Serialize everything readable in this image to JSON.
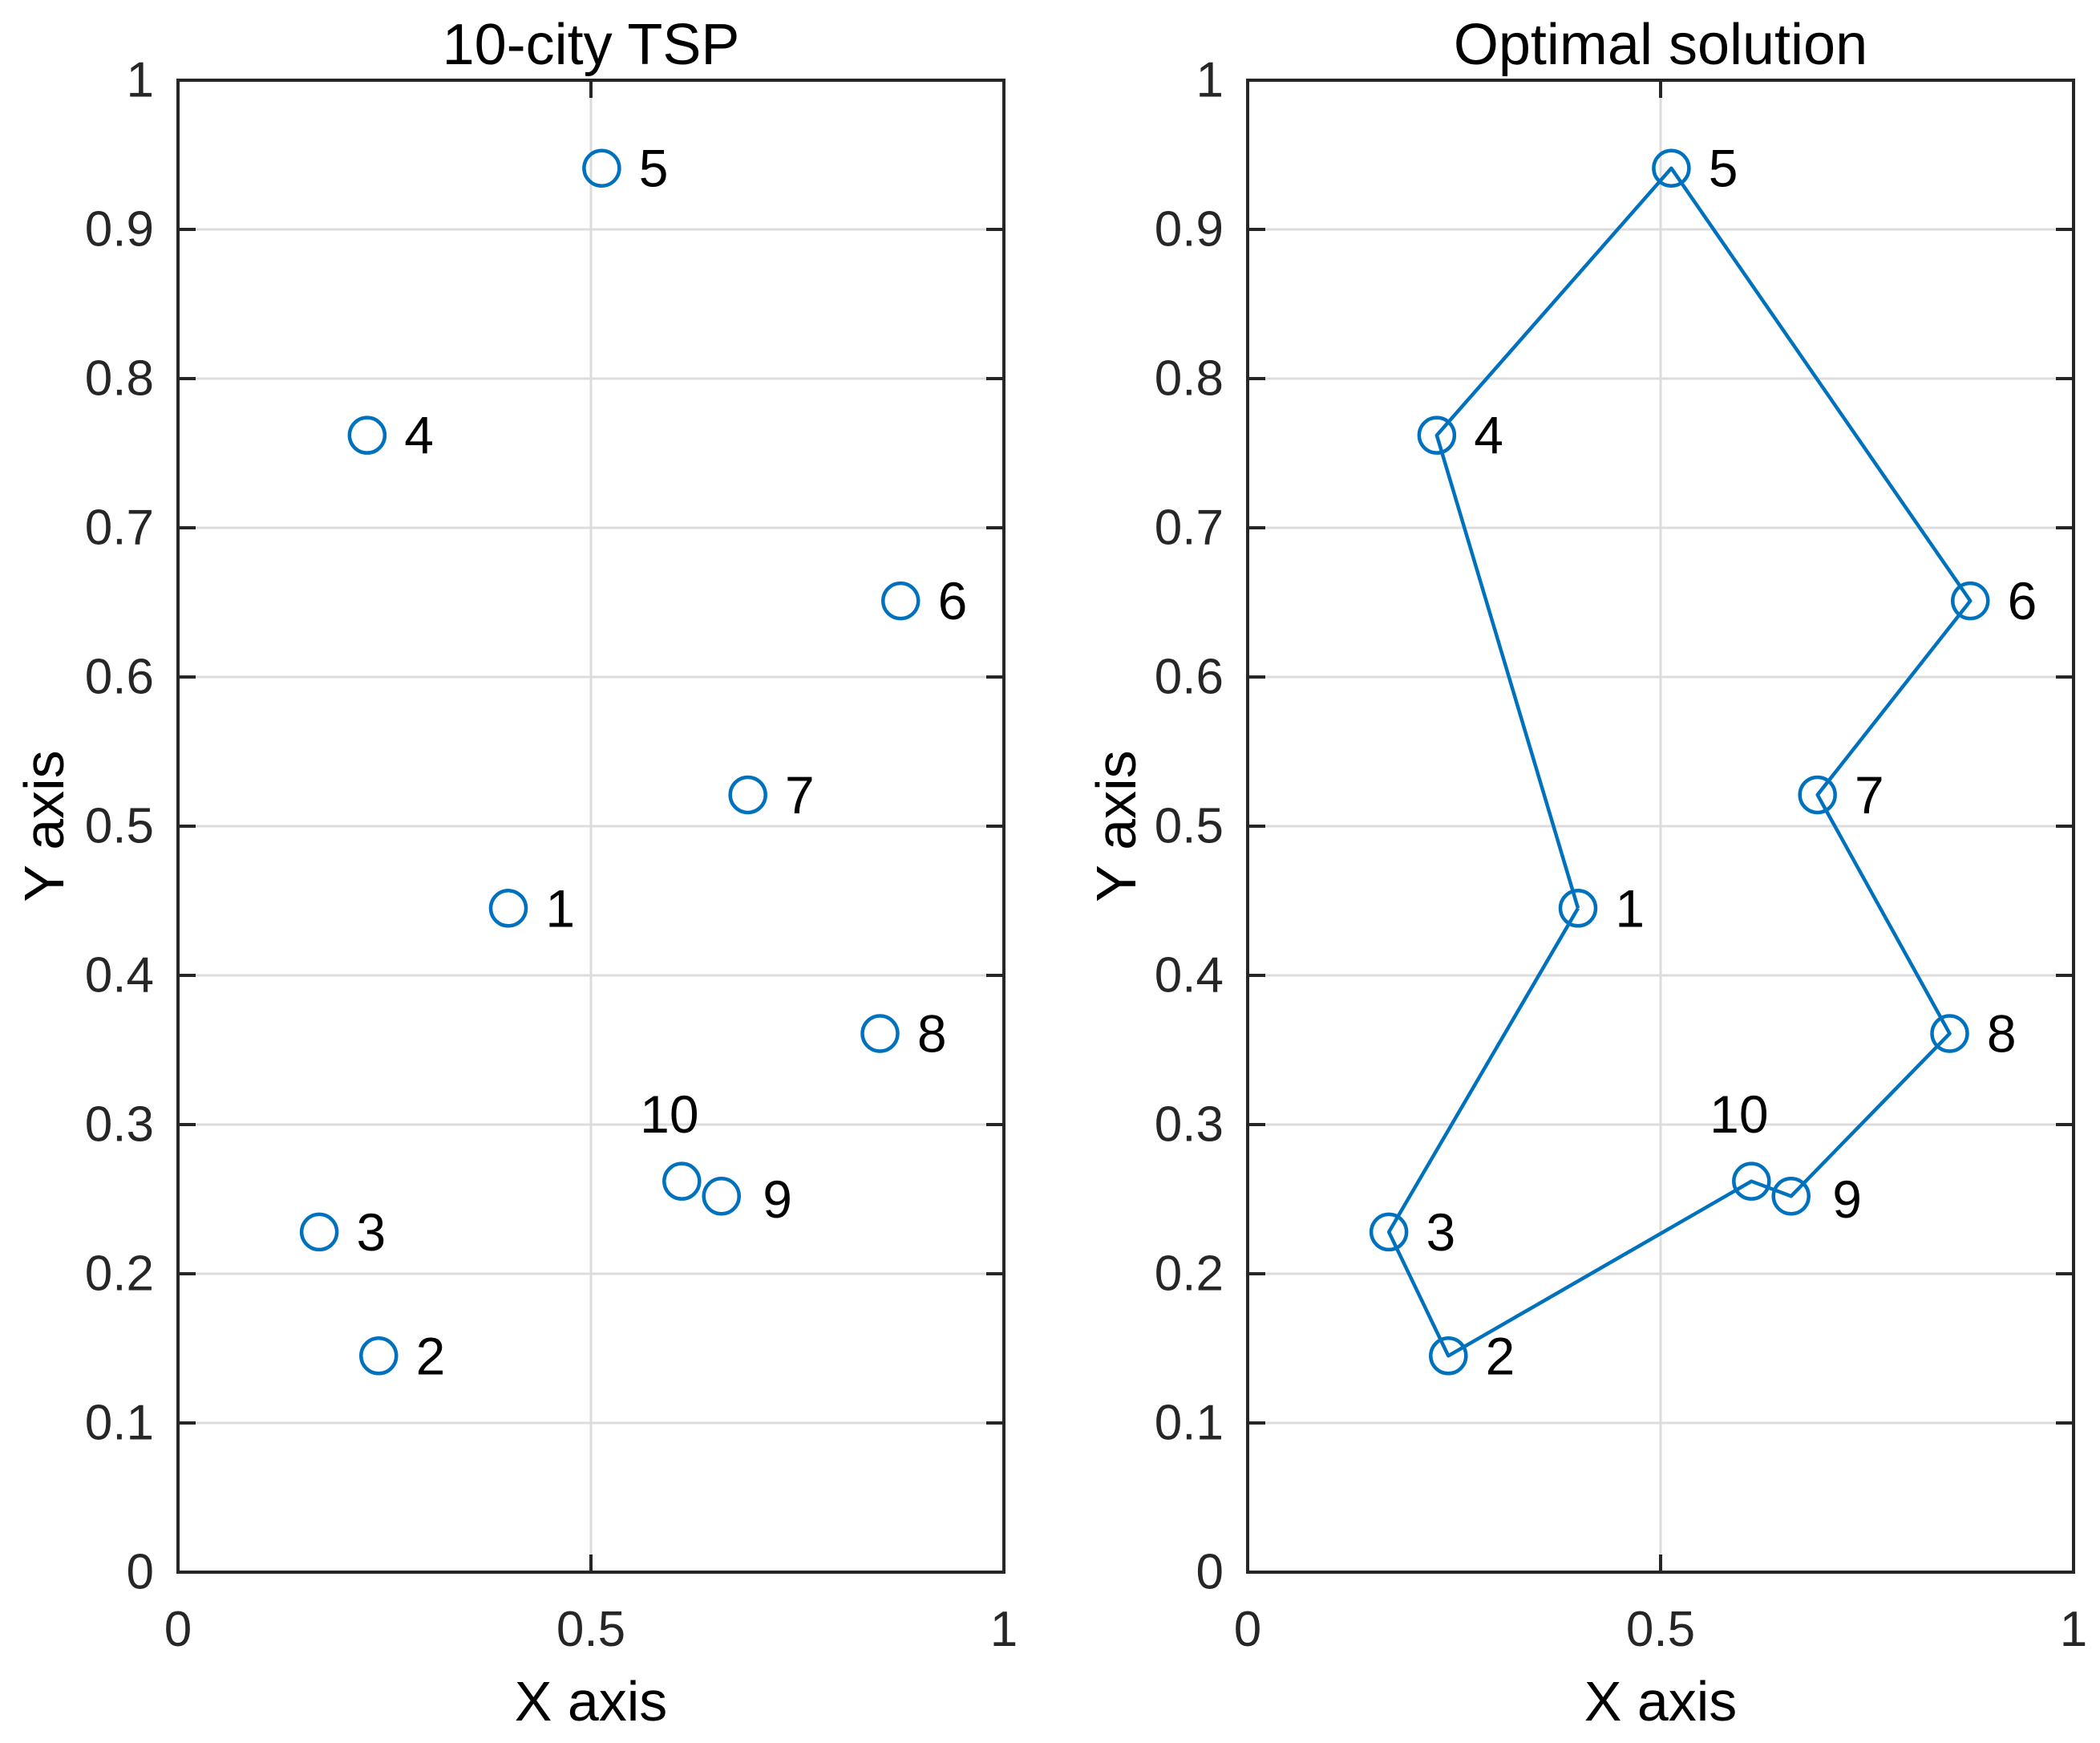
{
  "style": {
    "accent": "#0072BD",
    "axis_color": "#262626",
    "grid_color": "#dcdcdc",
    "text_color": "#000000",
    "background": "#ffffff"
  },
  "chart_data": [
    {
      "type": "scatter",
      "title": "10-city TSP",
      "xlabel": "X axis",
      "ylabel": "Y axis",
      "xlim": [
        0,
        1
      ],
      "ylim": [
        0,
        1
      ],
      "grid": true,
      "xticks": [
        0,
        0.5,
        1
      ],
      "xtick_labels": [
        "0",
        "0.5",
        "1"
      ],
      "yticks": [
        0,
        0.1,
        0.2,
        0.3,
        0.4,
        0.5,
        0.6,
        0.7,
        0.8,
        0.9,
        1
      ],
      "ytick_labels": [
        "0",
        "0.1",
        "0.2",
        "0.3",
        "0.4",
        "0.5",
        "0.6",
        "0.7",
        "0.8",
        "0.9",
        "1"
      ],
      "points": [
        {
          "label": "1",
          "x": 0.4,
          "y": 0.445,
          "lx": 0.045,
          "ly": 0,
          "anchor": "start"
        },
        {
          "label": "2",
          "x": 0.243,
          "y": 0.145,
          "lx": 0.045,
          "ly": 0,
          "anchor": "start"
        },
        {
          "label": "3",
          "x": 0.171,
          "y": 0.228,
          "lx": 0.045,
          "ly": 0,
          "anchor": "start"
        },
        {
          "label": "4",
          "x": 0.229,
          "y": 0.762,
          "lx": 0.045,
          "ly": 0,
          "anchor": "start"
        },
        {
          "label": "5",
          "x": 0.513,
          "y": 0.941,
          "lx": 0.045,
          "ly": 0,
          "anchor": "start"
        },
        {
          "label": "6",
          "x": 0.875,
          "y": 0.651,
          "lx": 0.045,
          "ly": 0,
          "anchor": "start"
        },
        {
          "label": "7",
          "x": 0.69,
          "y": 0.521,
          "lx": 0.045,
          "ly": 0,
          "anchor": "start"
        },
        {
          "label": "8",
          "x": 0.85,
          "y": 0.361,
          "lx": 0.045,
          "ly": 0,
          "anchor": "start"
        },
        {
          "label": "9",
          "x": 0.658,
          "y": 0.252,
          "lx": 0.05,
          "ly": -0.002,
          "anchor": "start"
        },
        {
          "label": "10",
          "x": 0.61,
          "y": 0.262,
          "lx": -0.015,
          "ly": 0.045,
          "anchor": "middle"
        }
      ],
      "tour": []
    },
    {
      "type": "scatter",
      "title": "Optimal solution",
      "xlabel": "X axis",
      "ylabel": "Y axis",
      "xlim": [
        0,
        1
      ],
      "ylim": [
        0,
        1
      ],
      "grid": true,
      "xticks": [
        0,
        0.5,
        1
      ],
      "xtick_labels": [
        "0",
        "0.5",
        "1"
      ],
      "yticks": [
        0,
        0.1,
        0.2,
        0.3,
        0.4,
        0.5,
        0.6,
        0.7,
        0.8,
        0.9,
        1
      ],
      "ytick_labels": [
        "0",
        "0.1",
        "0.2",
        "0.3",
        "0.4",
        "0.5",
        "0.6",
        "0.7",
        "0.8",
        "0.9",
        "1"
      ],
      "points": [
        {
          "label": "1",
          "x": 0.4,
          "y": 0.445,
          "lx": 0.045,
          "ly": 0,
          "anchor": "start"
        },
        {
          "label": "2",
          "x": 0.243,
          "y": 0.145,
          "lx": 0.045,
          "ly": 0,
          "anchor": "start"
        },
        {
          "label": "3",
          "x": 0.171,
          "y": 0.228,
          "lx": 0.045,
          "ly": 0,
          "anchor": "start"
        },
        {
          "label": "4",
          "x": 0.229,
          "y": 0.762,
          "lx": 0.045,
          "ly": 0,
          "anchor": "start"
        },
        {
          "label": "5",
          "x": 0.513,
          "y": 0.941,
          "lx": 0.045,
          "ly": 0,
          "anchor": "start"
        },
        {
          "label": "6",
          "x": 0.875,
          "y": 0.651,
          "lx": 0.045,
          "ly": 0,
          "anchor": "start"
        },
        {
          "label": "7",
          "x": 0.69,
          "y": 0.521,
          "lx": 0.045,
          "ly": 0,
          "anchor": "start"
        },
        {
          "label": "8",
          "x": 0.85,
          "y": 0.361,
          "lx": 0.045,
          "ly": 0,
          "anchor": "start"
        },
        {
          "label": "9",
          "x": 0.658,
          "y": 0.252,
          "lx": 0.05,
          "ly": -0.002,
          "anchor": "start"
        },
        {
          "label": "10",
          "x": 0.61,
          "y": 0.262,
          "lx": -0.015,
          "ly": 0.045,
          "anchor": "middle"
        }
      ],
      "tour": [
        "1",
        "4",
        "5",
        "6",
        "7",
        "8",
        "9",
        "10",
        "2",
        "3",
        "1"
      ]
    }
  ]
}
